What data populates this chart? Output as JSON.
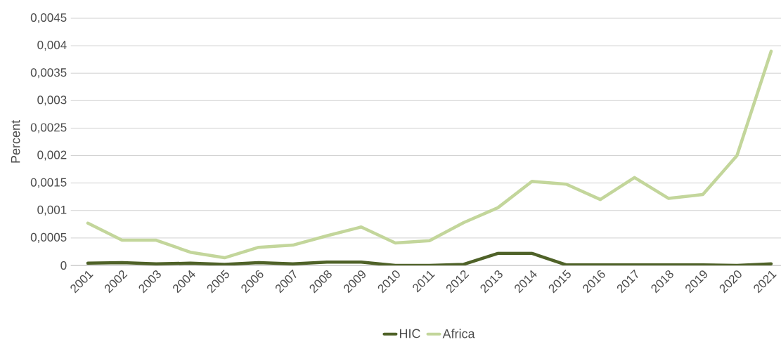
{
  "chart_data": {
    "type": "line",
    "ylabel": "Percent",
    "categories": [
      "2001",
      "2002",
      "2003",
      "2004",
      "2005",
      "2006",
      "2007",
      "2008",
      "2009",
      "2010",
      "2011",
      "2012",
      "2013",
      "2014",
      "2015",
      "2016",
      "2017",
      "2018",
      "2019",
      "2020",
      "2021"
    ],
    "series": [
      {
        "name": "HIC",
        "color": "#4f6228",
        "values": [
          4e-05,
          5e-05,
          3e-05,
          4e-05,
          2e-05,
          5e-05,
          3e-05,
          6e-05,
          6e-05,
          0.0,
          0.0,
          2e-05,
          0.00022,
          0.00022,
          1e-05,
          1e-05,
          1e-05,
          1e-05,
          1e-05,
          0.0,
          3e-05
        ]
      },
      {
        "name": "Africa",
        "color": "#c3d69b",
        "values": [
          0.00077,
          0.00046,
          0.00046,
          0.00024,
          0.00014,
          0.00033,
          0.00037,
          0.00054,
          0.0007,
          0.00041,
          0.00045,
          0.00078,
          0.00105,
          0.00153,
          0.00148,
          0.0012,
          0.0016,
          0.00122,
          0.00129,
          0.002,
          0.0039
        ]
      }
    ],
    "ylim": [
      0,
      0.0045
    ],
    "yticks": [
      0,
      {
        "value": 0.0005,
        "label": "0,0005"
      },
      {
        "value": 0.001,
        "label": "0,001"
      },
      {
        "value": 0.0015,
        "label": "0,0015"
      },
      {
        "value": 0.002,
        "label": "0,002"
      },
      {
        "value": 0.0025,
        "label": "0,0025"
      },
      {
        "value": 0.003,
        "label": "0,003"
      },
      {
        "value": 0.0035,
        "label": "0,0035"
      },
      {
        "value": 0.004,
        "label": "0,004"
      },
      {
        "value": 0.0045,
        "label": "0,0045"
      }
    ],
    "grid": "y",
    "legend": "bottom",
    "marker": "none",
    "line_style": "solid"
  }
}
